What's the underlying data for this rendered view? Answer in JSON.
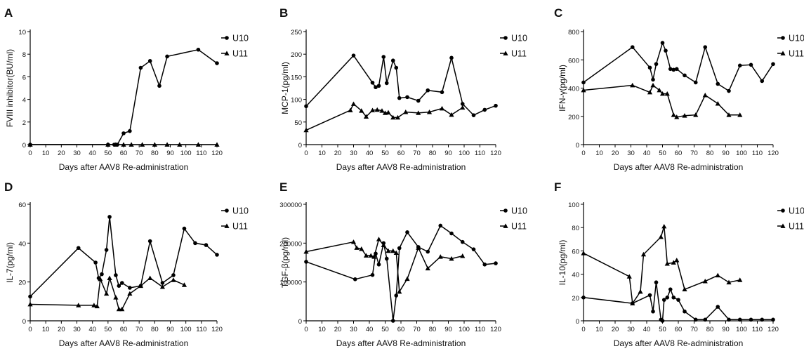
{
  "chart_data": [
    {
      "type": "line",
      "panel": "A",
      "xlabel": "Days after AAV8 Re-administration",
      "ylabel": "FVIII inhibitor(BU/ml)",
      "xlim": [
        0,
        120
      ],
      "ylim": [
        0,
        10
      ],
      "x_ticks": [
        0,
        10,
        20,
        30,
        40,
        50,
        60,
        70,
        80,
        90,
        100,
        110,
        120
      ],
      "y_ticks": [
        0,
        2,
        4,
        6,
        8,
        10
      ],
      "y_tick_labels": [
        "0",
        "2",
        "4",
        "6",
        "8",
        "10"
      ],
      "legend_position": "top-right",
      "series": [
        {
          "name": "U10",
          "marker": "circle",
          "x": [
            0,
            50,
            54,
            56,
            60,
            64,
            71,
            77,
            83,
            88,
            108,
            120
          ],
          "y": [
            0,
            0,
            0,
            0,
            1.0,
            1.2,
            6.8,
            7.4,
            5.2,
            7.8,
            8.4,
            7.2
          ]
        },
        {
          "name": "U11",
          "marker": "triangle",
          "x": [
            0,
            50,
            55,
            60,
            65,
            72,
            80,
            88,
            96,
            108,
            120
          ],
          "y": [
            0,
            0,
            0,
            0,
            0,
            0,
            0,
            0,
            0,
            0,
            0
          ]
        }
      ]
    },
    {
      "type": "line",
      "panel": "B",
      "xlabel": "Days after AAV8 Re-administration",
      "ylabel": "MCP-1(pg/ml)",
      "xlim": [
        0,
        120
      ],
      "ylim": [
        0,
        250
      ],
      "x_ticks": [
        0,
        10,
        20,
        30,
        40,
        50,
        60,
        70,
        80,
        90,
        100,
        110,
        120
      ],
      "y_ticks": [
        0,
        50,
        100,
        150,
        200,
        250
      ],
      "y_tick_labels": [
        "0",
        "50",
        "100",
        "150",
        "200",
        "250"
      ],
      "legend_position": "top-right",
      "series": [
        {
          "name": "U10",
          "marker": "circle",
          "x": [
            0,
            30,
            42,
            44,
            46,
            49,
            51,
            55,
            57,
            59,
            64,
            71,
            77,
            86,
            92,
            99,
            106,
            113,
            120
          ],
          "y": [
            85,
            197,
            137,
            127,
            130,
            194,
            136,
            186,
            170,
            103,
            105,
            97,
            120,
            116,
            192,
            90,
            65,
            77,
            86
          ]
        },
        {
          "name": "U11",
          "marker": "triangle",
          "x": [
            0,
            28,
            30,
            35,
            38,
            42,
            45,
            48,
            50,
            52,
            55,
            58,
            63,
            71,
            78,
            86,
            92,
            99
          ],
          "y": [
            32,
            76,
            90,
            75,
            62,
            76,
            77,
            75,
            70,
            71,
            60,
            60,
            72,
            70,
            72,
            80,
            66,
            82
          ]
        }
      ]
    },
    {
      "type": "line",
      "panel": "C",
      "xlabel": "Days after AAV8 Re-administration",
      "ylabel": "IFN-γ(pg/ml)",
      "xlim": [
        0,
        120
      ],
      "ylim": [
        0,
        800
      ],
      "x_ticks": [
        0,
        10,
        20,
        30,
        40,
        50,
        60,
        70,
        80,
        90,
        100,
        110,
        120
      ],
      "y_ticks": [
        0,
        200,
        400,
        600,
        800
      ],
      "y_tick_labels": [
        "0",
        "200",
        "400",
        "600",
        "800"
      ],
      "legend_position": "top-right",
      "series": [
        {
          "name": "U10",
          "marker": "circle",
          "x": [
            0,
            31,
            42,
            44,
            46,
            50,
            52,
            55,
            57,
            59,
            64,
            71,
            77,
            85,
            92,
            99,
            106,
            113,
            120
          ],
          "y": [
            440,
            690,
            545,
            460,
            570,
            720,
            665,
            535,
            530,
            535,
            490,
            440,
            690,
            430,
            380,
            560,
            565,
            450,
            570
          ]
        },
        {
          "name": "U11",
          "marker": "triangle",
          "x": [
            0,
            31,
            42,
            44,
            48,
            50,
            53,
            57,
            59,
            64,
            71,
            77,
            85,
            92,
            99
          ],
          "y": [
            385,
            420,
            370,
            420,
            385,
            360,
            360,
            210,
            195,
            205,
            210,
            350,
            290,
            210,
            210
          ]
        }
      ]
    },
    {
      "type": "line",
      "panel": "D",
      "xlabel": "Days after AAV8 Re-administration",
      "ylabel": "IL-7(pg/ml)",
      "xlim": [
        0,
        120
      ],
      "ylim": [
        0,
        60
      ],
      "x_ticks": [
        0,
        10,
        20,
        30,
        40,
        50,
        60,
        70,
        80,
        90,
        100,
        110,
        120
      ],
      "y_ticks": [
        0,
        20,
        40,
        60
      ],
      "y_tick_labels": [
        "0",
        "20",
        "40",
        "60"
      ],
      "legend_position": "top-right",
      "series": [
        {
          "name": "U10",
          "marker": "circle",
          "x": [
            0,
            31,
            42,
            44,
            46,
            49,
            51,
            55,
            57,
            59,
            64,
            71,
            77,
            85,
            92,
            99,
            106,
            113,
            120
          ],
          "y": [
            12.5,
            37.5,
            30,
            22,
            24,
            36.5,
            53.5,
            23.5,
            18,
            19.5,
            17,
            18,
            41,
            19.5,
            23.5,
            47.5,
            40,
            39,
            34
          ]
        },
        {
          "name": "U11",
          "marker": "triangle",
          "x": [
            0,
            31,
            41,
            43,
            45,
            49,
            51,
            55,
            57,
            59,
            64,
            71,
            77,
            85,
            92,
            99
          ],
          "y": [
            8.5,
            8,
            8,
            7.5,
            21.5,
            14,
            22,
            12,
            6,
            6,
            14,
            18,
            22,
            17.5,
            21,
            18.5
          ]
        }
      ]
    },
    {
      "type": "line",
      "panel": "E",
      "xlabel": "Days after AAV8 Re-administration",
      "ylabel": "TGF-β(pg/ml)",
      "xlim": [
        0,
        120
      ],
      "ylim": [
        0,
        300000
      ],
      "x_ticks": [
        0,
        10,
        20,
        30,
        40,
        50,
        60,
        70,
        80,
        90,
        100,
        110,
        120
      ],
      "y_ticks": [
        0,
        100000,
        200000,
        300000
      ],
      "y_tick_labels": [
        "0",
        "100000",
        "200000",
        "300000"
      ],
      "legend_position": "top-right",
      "series": [
        {
          "name": "U10",
          "marker": "circle",
          "x": [
            0,
            31,
            42,
            44,
            46,
            49,
            51,
            55,
            57,
            59,
            64,
            71,
            77,
            85,
            92,
            99,
            106,
            113,
            120
          ],
          "y": [
            152000,
            107000,
            118000,
            173000,
            145000,
            200000,
            160000,
            0,
            65000,
            187000,
            228000,
            190000,
            178000,
            245000,
            225000,
            203000,
            184000,
            145000,
            148000
          ]
        },
        {
          "name": "U11",
          "marker": "triangle",
          "x": [
            0,
            30,
            32,
            35,
            38,
            41,
            43,
            46,
            49,
            52,
            55,
            57,
            59,
            64,
            71,
            77,
            85,
            92,
            99
          ],
          "y": [
            178000,
            203000,
            188000,
            185000,
            168000,
            168000,
            165000,
            210000,
            195000,
            180000,
            180000,
            175000,
            75000,
            108000,
            188000,
            135000,
            165000,
            160000,
            167000
          ]
        }
      ]
    },
    {
      "type": "line",
      "panel": "F",
      "xlabel": "Days after AAV8 Re-administration",
      "ylabel": "IL-10(pg/ml)",
      "xlim": [
        0,
        120
      ],
      "ylim": [
        0,
        100
      ],
      "x_ticks": [
        0,
        10,
        20,
        30,
        40,
        50,
        60,
        70,
        80,
        90,
        100,
        110,
        120
      ],
      "y_ticks": [
        0,
        20,
        40,
        60,
        80,
        100
      ],
      "y_tick_labels": [
        "0",
        "20",
        "40",
        "60",
        "80",
        "100"
      ],
      "legend_position": "top-right",
      "series": [
        {
          "name": "U10",
          "marker": "circle",
          "x": [
            0,
            31,
            42,
            44,
            46,
            49,
            50,
            51,
            53,
            55,
            57,
            60,
            64,
            71,
            77,
            85,
            92,
            99,
            106,
            113,
            120
          ],
          "y": [
            20,
            15,
            22,
            8,
            33,
            1,
            0,
            18,
            20,
            27,
            20,
            18,
            8,
            1,
            1,
            12,
            1,
            1,
            1,
            1,
            1
          ]
        },
        {
          "name": "U11",
          "marker": "triangle",
          "x": [
            0,
            29,
            31,
            36,
            38,
            49,
            51,
            53,
            57,
            59,
            64,
            77,
            85,
            92,
            99
          ],
          "y": [
            58,
            38,
            15,
            25,
            57,
            72,
            81,
            49,
            50,
            52,
            27,
            34,
            39,
            33,
            35
          ]
        }
      ]
    }
  ]
}
